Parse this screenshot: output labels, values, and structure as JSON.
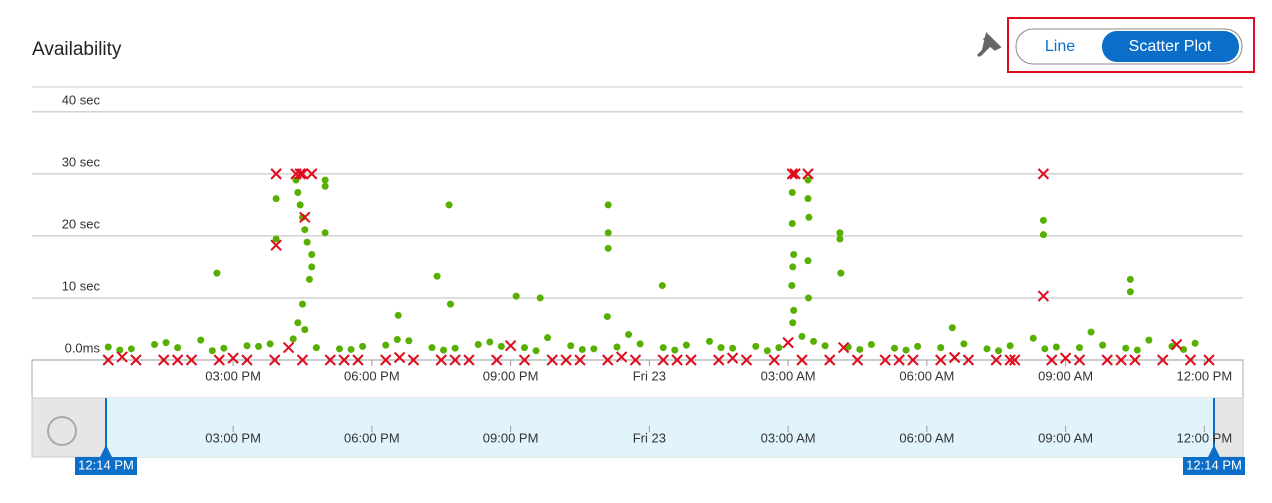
{
  "title": "Availability",
  "toggle": {
    "options": [
      "Line",
      "Scatter Plot"
    ],
    "selected": 1
  },
  "brush": {
    "start": "12:14 PM",
    "end": "12:14 PM"
  },
  "chart_data": {
    "type": "scatter",
    "grid": true,
    "xlim": [
      12.23,
      36.23
    ],
    "ylim": [
      0,
      44
    ],
    "xticks": [
      {
        "value": 15,
        "label": "03:00 PM"
      },
      {
        "value": 18,
        "label": "06:00 PM"
      },
      {
        "value": 21,
        "label": "09:00 PM"
      },
      {
        "value": 24,
        "label": "Fri 23"
      },
      {
        "value": 27,
        "label": "03:00 AM"
      },
      {
        "value": 30,
        "label": "06:00 AM"
      },
      {
        "value": 33,
        "label": "09:00 AM"
      },
      {
        "value": 36,
        "label": "12:00 PM"
      }
    ],
    "yticks": [
      {
        "value": 0,
        "label": "0.0ms"
      },
      {
        "value": 10,
        "label": "10 sec"
      },
      {
        "value": 20,
        "label": "20 sec"
      },
      {
        "value": 30,
        "label": "30 sec"
      },
      {
        "value": 40,
        "label": "40 sec"
      }
    ],
    "series": [
      {
        "color": "#57b000",
        "marker": "circle",
        "x": [
          12.3,
          12.8,
          13.3,
          13.8,
          14.3,
          14.8,
          15.3,
          15.8,
          16.3,
          16.8,
          17.3,
          17.8,
          18.3,
          18.8,
          19.3,
          19.8,
          20.3,
          20.8,
          21.3,
          21.8,
          22.3,
          22.8,
          23.3,
          23.8,
          24.3,
          24.8,
          25.3,
          25.8,
          26.3,
          26.8,
          27.3,
          27.8,
          28.3,
          28.8,
          29.3,
          29.8,
          30.3,
          30.8,
          31.3,
          31.8,
          32.3,
          32.8,
          33.3,
          33.8,
          34.3,
          34.8,
          35.3,
          35.8,
          12.55,
          13.55,
          14.55,
          15.55,
          16.55,
          17.55,
          18.55,
          19.55,
          20.55,
          21.55,
          22.55,
          23.55,
          24.55,
          25.55,
          26.55,
          27.55,
          28.55,
          29.55,
          30.55,
          31.55,
          32.55,
          33.55,
          34.55,
          35.55,
          15.93,
          15.93,
          16.36,
          16.4,
          16.45,
          16.5,
          16.55,
          16.6,
          16.7,
          16.7,
          16.65,
          16.5,
          16.4,
          16.99,
          16.99,
          16.99,
          14.65,
          19.41,
          19.67,
          19.7,
          21.12,
          21.64,
          23.11,
          23.11,
          23.11,
          23.09,
          24.28,
          27.09,
          27.09,
          27.12,
          27.1,
          27.08,
          27.12,
          27.1,
          27.43,
          27.43,
          27.45,
          27.43,
          27.44,
          28.12,
          28.12,
          28.14,
          32.52,
          32.52,
          34.4,
          34.4,
          18.57
        ],
        "values": [
          2.1,
          1.8,
          2.5,
          2.0,
          3.2,
          1.9,
          2.3,
          2.6,
          3.4,
          2.0,
          1.8,
          2.2,
          2.4,
          3.1,
          2.0,
          1.9,
          2.5,
          2.2,
          2.0,
          3.6,
          2.3,
          1.8,
          2.1,
          2.6,
          2.0,
          2.4,
          3.0,
          1.9,
          2.2,
          2.0,
          3.8,
          2.3,
          2.1,
          2.5,
          1.9,
          2.2,
          2.0,
          2.6,
          1.8,
          2.3,
          3.5,
          2.1,
          2.0,
          2.4,
          1.9,
          3.2,
          2.2,
          2.7,
          1.6,
          2.8,
          1.5,
          2.2,
          4.9,
          1.7,
          3.3,
          1.6,
          2.9,
          1.5,
          1.7,
          4.1,
          1.6,
          2.0,
          1.5,
          3.0,
          1.7,
          1.6,
          5.2,
          1.5,
          1.8,
          4.5,
          1.6,
          1.7,
          26,
          19.5,
          29,
          27,
          25,
          23,
          21,
          19,
          17,
          15,
          13,
          9,
          6,
          29,
          28,
          20.5,
          14,
          13.5,
          25,
          9,
          10.3,
          10,
          25,
          20.5,
          18,
          7,
          12,
          27,
          22,
          17,
          15,
          12,
          8,
          6,
          29,
          26,
          23,
          16,
          10,
          20.5,
          19.5,
          14,
          22.5,
          20.2,
          13,
          11,
          7.2
        ]
      },
      {
        "color": "#e00b1c",
        "marker": "x",
        "x": [
          12.3,
          12.9,
          13.5,
          14.1,
          14.7,
          15.3,
          15.9,
          16.5,
          17.1,
          17.7,
          18.3,
          18.9,
          19.5,
          20.1,
          20.7,
          21.3,
          21.9,
          22.5,
          23.1,
          23.7,
          24.3,
          24.9,
          25.5,
          26.1,
          26.7,
          27.3,
          27.9,
          28.5,
          29.1,
          29.7,
          30.3,
          30.9,
          31.5,
          31.9,
          32.7,
          33.3,
          33.9,
          34.5,
          35.1,
          35.7,
          36.1,
          12.6,
          13.8,
          15.0,
          16.2,
          17.4,
          18.6,
          19.8,
          21.0,
          22.2,
          23.4,
          24.6,
          25.8,
          27.0,
          28.2,
          29.4,
          30.6,
          31.8,
          33.0,
          34.2,
          35.4,
          15.93,
          15.93,
          16.36,
          16.45,
          16.55,
          16.7,
          16.5,
          27.09,
          27.15,
          27.43,
          32.52,
          32.52
        ],
        "values": [
          0,
          0,
          0,
          0,
          0,
          0,
          0,
          0,
          0,
          0,
          0,
          0,
          0,
          0,
          0,
          0,
          0,
          0,
          0,
          0,
          0,
          0,
          0,
          0,
          0,
          0,
          0,
          0,
          0,
          0,
          0,
          0,
          0,
          0,
          0,
          0,
          0,
          0,
          0,
          0,
          0,
          0.5,
          0,
          0.3,
          2,
          0,
          0.4,
          0,
          2.3,
          0,
          0.5,
          0,
          0.3,
          2.8,
          2,
          0,
          0.4,
          0,
          0.3,
          0,
          2.5,
          30,
          18.5,
          30,
          30,
          23,
          30,
          30,
          30,
          30,
          30,
          30,
          10.3
        ]
      }
    ]
  }
}
